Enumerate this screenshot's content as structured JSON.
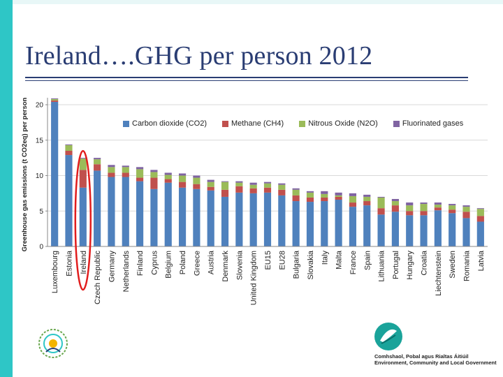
{
  "slide": {
    "title": "Ireland….GHG per person 2012"
  },
  "colors": {
    "co2": "#4f81bd",
    "ch4": "#c0504d",
    "n2o": "#9bbb59",
    "fgas": "#8064a2",
    "highlight": "#e11d1d",
    "accent": "#2ec6c6",
    "title": "#2a3d73"
  },
  "logos": {
    "left_icon": "lasnig-logo-icon",
    "right_icon": "department-leaf-logo-icon",
    "right_text": "Comhshaol, Pobal agus Rialtas Áitiúil Environment, Community and Local Government"
  },
  "chart_data": {
    "type": "bar",
    "stacked": true,
    "ylabel": "Greenhouse gas emissions (t CO2eq) per person",
    "ylim": [
      0,
      20
    ],
    "yticks": [
      0,
      5,
      10,
      15,
      20
    ],
    "legend_position": "top",
    "highlight_category": "Ireland",
    "categories": [
      "Luxembourg",
      "Estonia",
      "Ireland",
      "Czech Republic",
      "Germany",
      "Netherlands",
      "Finland",
      "Cyprus",
      "Belgium",
      "Poland",
      "Greece",
      "Austria",
      "Denmark",
      "Slovenia",
      "United Kingdom",
      "EU15",
      "EU28",
      "Bulgaria",
      "Slovakia",
      "Italy",
      "Malta",
      "France",
      "Spain",
      "Lithuania",
      "Portugal",
      "Hungary",
      "Croatia",
      "Liechtenstein",
      "Sweden",
      "Romania",
      "Latvia"
    ],
    "series": [
      {
        "name": "Carbon dioxide (CO2)",
        "color_key": "co2",
        "values": [
          20.4,
          12.9,
          8.3,
          10.7,
          9.8,
          9.8,
          9.2,
          8.1,
          9.0,
          8.3,
          8.1,
          7.9,
          7.0,
          7.6,
          7.5,
          7.6,
          7.2,
          6.4,
          6.3,
          6.4,
          6.6,
          5.6,
          5.8,
          4.5,
          4.9,
          4.4,
          4.4,
          5.1,
          4.7,
          4.0,
          3.5
        ]
      },
      {
        "name": "Methane (CH4)",
        "color_key": "ch4",
        "values": [
          0.2,
          0.6,
          2.5,
          0.9,
          0.6,
          0.6,
          0.5,
          1.6,
          0.5,
          0.8,
          0.7,
          0.5,
          1.0,
          0.9,
          0.7,
          0.7,
          0.8,
          0.8,
          0.6,
          0.5,
          0.4,
          0.6,
          0.6,
          0.9,
          0.9,
          0.6,
          0.6,
          0.4,
          0.5,
          0.9,
          0.8
        ]
      },
      {
        "name": "Nitrous Oxide (N2O)",
        "color_key": "n2o",
        "values": [
          0.2,
          0.8,
          1.6,
          0.7,
          0.8,
          0.8,
          1.2,
          0.8,
          0.6,
          0.9,
          0.9,
          0.7,
          1.1,
          0.5,
          0.5,
          0.6,
          0.7,
          0.8,
          0.7,
          0.5,
          0.2,
          0.9,
          0.6,
          1.5,
          0.6,
          0.8,
          1.0,
          0.4,
          0.6,
          0.7,
          1.0
        ]
      },
      {
        "name": "Fluorinated gases",
        "color_key": "fgas",
        "values": [
          0.1,
          0.1,
          0.1,
          0.2,
          0.3,
          0.2,
          0.3,
          0.3,
          0.3,
          0.3,
          0.3,
          0.3,
          0.1,
          0.2,
          0.3,
          0.2,
          0.2,
          0.2,
          0.2,
          0.4,
          0.4,
          0.4,
          0.3,
          0.1,
          0.3,
          0.4,
          0.2,
          0.3,
          0.2,
          0.2,
          0.1
        ]
      }
    ]
  }
}
